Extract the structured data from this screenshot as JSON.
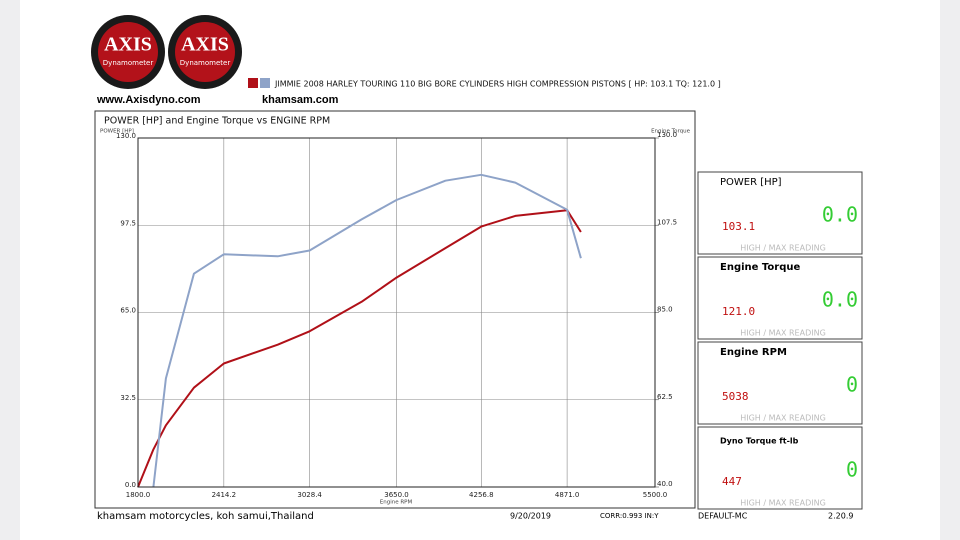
{
  "header": {
    "logos": [
      {
        "brand": "AXIS",
        "sub": "Dynamometer"
      },
      {
        "brand": "AXIS",
        "sub": "Dynamometer"
      }
    ],
    "website": "www.Axisdyno.com",
    "shop_site": "khamsam.com"
  },
  "chart_data": {
    "type": "line",
    "title": "POWER [HP] and Engine Torque vs ENGINE RPM",
    "legend": "JIMMIE 2008 HARLEY TOURING 110 BIG BORE CYLINDERS HIGH COMPRESSION PISTONS [ HP: 103.1 TQ: 121.0 ]",
    "x_label": "Engine RPM",
    "y_label": "POWER [HP]",
    "y2_label": "Engine Torque",
    "x": [
      1800,
      1910,
      2000,
      2200,
      2414,
      2800,
      3028,
      3400,
      3650,
      4000,
      4256,
      4500,
      4871,
      4970
    ],
    "series": [
      {
        "color": "#b01018",
        "values": [
          0,
          14,
          23,
          37,
          46,
          53,
          58,
          69,
          78,
          89,
          97,
          101,
          103.1,
          95
        ]
      },
      {
        "color": "#8ea3c8",
        "axis": "y2",
        "values": [
          null,
          40,
          68,
          95,
          100,
          99.5,
          101,
          109,
          114,
          119,
          120.5,
          118.5,
          111.5,
          99
        ]
      }
    ],
    "xlim": [
      1800,
      5500
    ],
    "xticks": [
      {
        "value": 1800,
        "label": "1800.0"
      },
      2414.2,
      3028.4,
      {
        "value": 3650,
        "label": "3650.0"
      },
      4256.8,
      {
        "value": 4871,
        "label": "4871.0"
      },
      {
        "value": 5500,
        "label": "5500.0"
      }
    ],
    "ylim": [
      0,
      130
    ],
    "yticks": [
      {
        "value": 0,
        "label": "0.0"
      },
      32.5,
      {
        "value": 65,
        "label": "65.0"
      },
      97.5,
      {
        "value": 130,
        "label": "130.0"
      }
    ],
    "y2lim": [
      40,
      130
    ],
    "y2ticks": [
      {
        "value": 40,
        "label": "40.0"
      },
      62.5,
      {
        "value": 85,
        "label": "85.0"
      },
      107.5,
      {
        "value": 130,
        "label": "130.0"
      }
    ],
    "grid": true
  },
  "panels": [
    {
      "label": "POWER [HP]",
      "value": "103.1",
      "reading": "0.0",
      "note": "HIGH / MAX READING"
    },
    {
      "label": "Engine Torque",
      "value": "121.0",
      "reading": "0.0",
      "note": "HIGH / MAX READING"
    },
    {
      "label": "Engine RPM",
      "value": "5038",
      "reading": "0",
      "note": "HIGH / MAX READING"
    },
    {
      "label": "Dyno Torque ft-lb",
      "value": "447",
      "reading": "0",
      "note": "HIGH / MAX READING"
    }
  ],
  "footer": {
    "shop": "khamsam motorcycles, koh samui,Thailand",
    "date": "9/20/2019",
    "corr": "CORR:0.993 IN:Y",
    "profile": "DEFAULT-MC",
    "version": "2.20.9"
  }
}
